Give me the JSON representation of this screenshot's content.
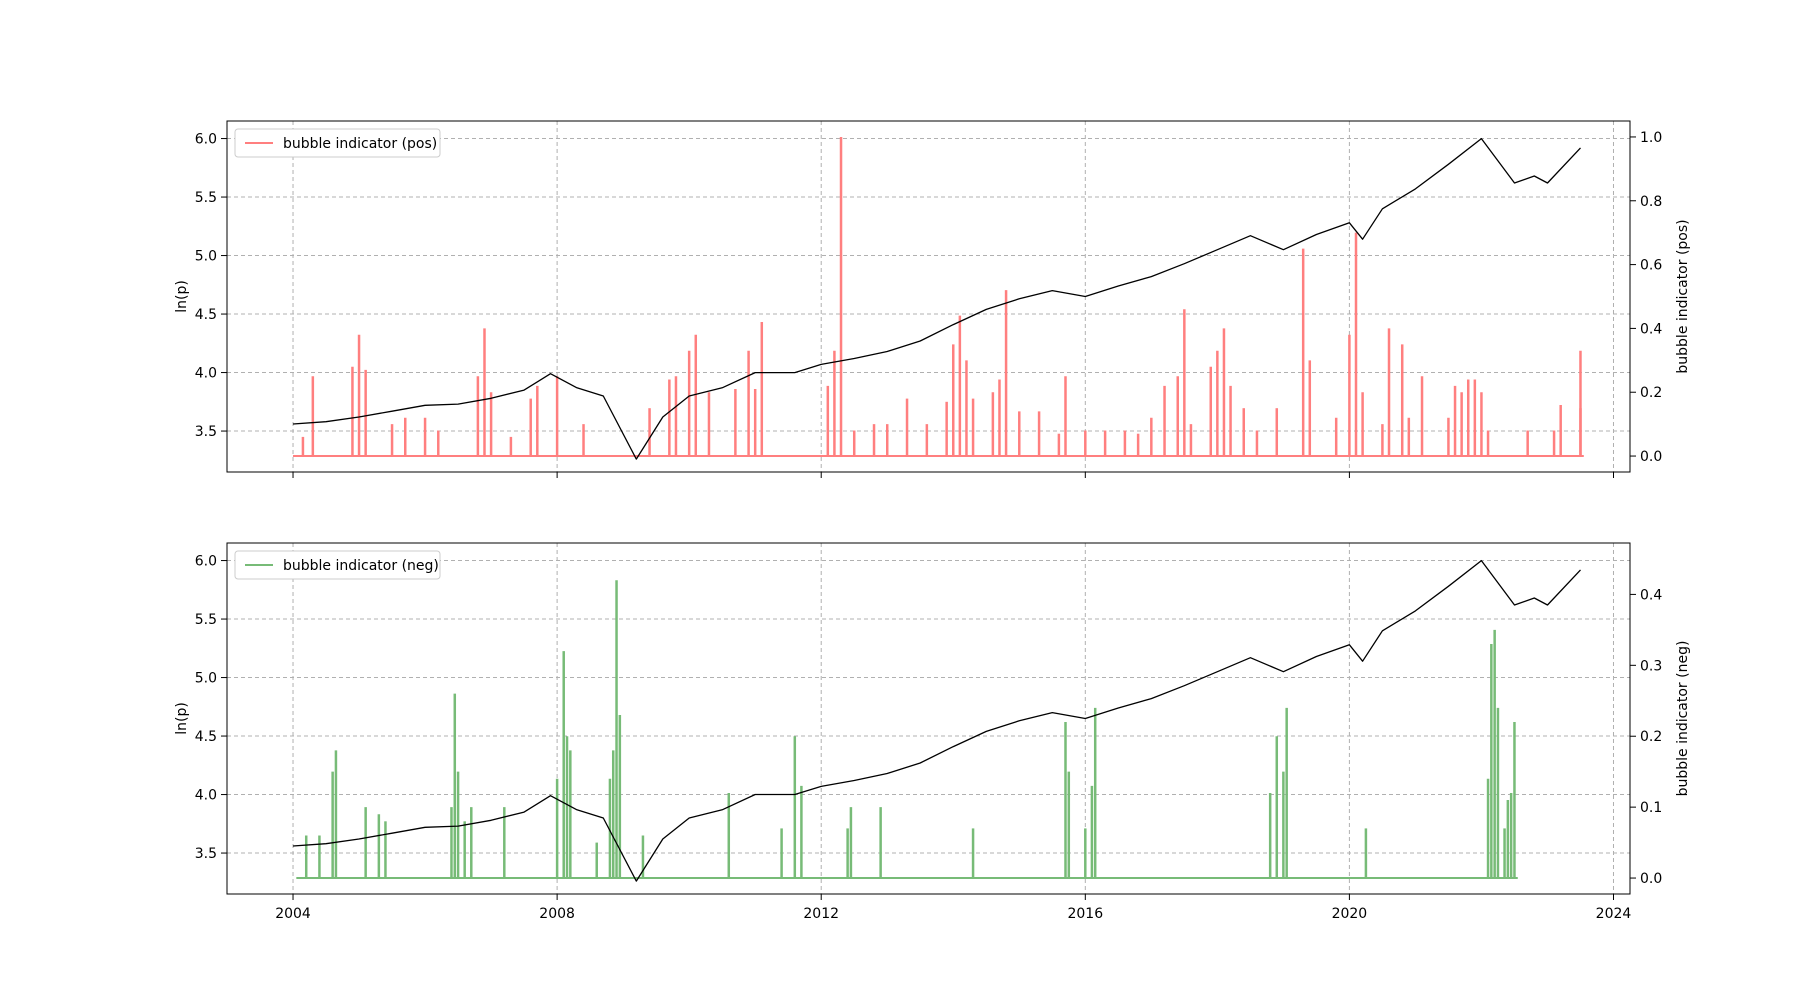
{
  "chart_data": [
    {
      "type": "line",
      "title": "",
      "xlabel": "",
      "ylabel": "ln(p)",
      "ylabel_right": "bubble indicator (pos)",
      "xlim": [
        2003,
        2024.25
      ],
      "ylim": [
        3.15,
        6.15
      ],
      "ylim_right": [
        -0.05,
        1.05
      ],
      "grid": true,
      "legend": {
        "placement": "upper-left",
        "entries": [
          "bubble indicator (pos)"
        ]
      },
      "x_ticks": [
        "2004",
        "2008",
        "2012",
        "2016",
        "2020",
        "2024"
      ],
      "y_ticks": [
        "3.5",
        "4.0",
        "4.5",
        "5.0",
        "5.5",
        "6.0"
      ],
      "y_ticks_right": [
        "0.0",
        "0.2",
        "0.4",
        "0.6",
        "0.8",
        "1.0"
      ],
      "price_series": {
        "axis": "left",
        "color": "#000000",
        "x": [
          2004.0,
          2004.5,
          2005.0,
          2005.5,
          2006.0,
          2006.5,
          2007.0,
          2007.5,
          2007.9,
          2008.3,
          2008.7,
          2009.2,
          2009.6,
          2010.0,
          2010.5,
          2011.0,
          2011.6,
          2012.0,
          2012.5,
          2013.0,
          2013.5,
          2014.0,
          2014.5,
          2015.0,
          2015.5,
          2016.0,
          2016.5,
          2017.0,
          2017.5,
          2018.0,
          2018.5,
          2019.0,
          2019.5,
          2020.0,
          2020.2,
          2020.5,
          2021.0,
          2021.5,
          2022.0,
          2022.5,
          2022.8,
          2023.0,
          2023.5
        ],
        "y": [
          3.56,
          3.58,
          3.62,
          3.67,
          3.72,
          3.73,
          3.78,
          3.85,
          3.99,
          3.87,
          3.8,
          3.26,
          3.62,
          3.8,
          3.87,
          4.0,
          4.0,
          4.07,
          4.12,
          4.18,
          4.27,
          4.41,
          4.54,
          4.63,
          4.7,
          4.65,
          4.74,
          4.82,
          4.93,
          5.05,
          5.17,
          5.05,
          5.18,
          5.28,
          5.14,
          5.4,
          5.57,
          5.78,
          6.0,
          5.62,
          5.68,
          5.62,
          5.92
        ]
      },
      "indicator_series": {
        "name": "bubble indicator (pos)",
        "axis": "right",
        "color": "#ff7f7f",
        "spikes": [
          [
            2004.15,
            0.06
          ],
          [
            2004.3,
            0.25
          ],
          [
            2004.9,
            0.28
          ],
          [
            2005.0,
            0.38
          ],
          [
            2005.1,
            0.27
          ],
          [
            2005.5,
            0.1
          ],
          [
            2005.7,
            0.12
          ],
          [
            2006.0,
            0.12
          ],
          [
            2006.2,
            0.08
          ],
          [
            2006.8,
            0.25
          ],
          [
            2006.9,
            0.4
          ],
          [
            2007.0,
            0.2
          ],
          [
            2007.3,
            0.06
          ],
          [
            2007.6,
            0.18
          ],
          [
            2007.7,
            0.22
          ],
          [
            2008.0,
            0.25
          ],
          [
            2008.4,
            0.1
          ],
          [
            2009.4,
            0.15
          ],
          [
            2009.7,
            0.24
          ],
          [
            2009.8,
            0.25
          ],
          [
            2010.0,
            0.33
          ],
          [
            2010.1,
            0.38
          ],
          [
            2010.3,
            0.2
          ],
          [
            2010.7,
            0.21
          ],
          [
            2010.9,
            0.33
          ],
          [
            2011.0,
            0.21
          ],
          [
            2011.1,
            0.42
          ],
          [
            2012.1,
            0.22
          ],
          [
            2012.2,
            0.33
          ],
          [
            2012.3,
            1.0
          ],
          [
            2012.5,
            0.08
          ],
          [
            2012.8,
            0.1
          ],
          [
            2013.0,
            0.1
          ],
          [
            2013.3,
            0.18
          ],
          [
            2013.6,
            0.1
          ],
          [
            2013.9,
            0.17
          ],
          [
            2014.0,
            0.35
          ],
          [
            2014.1,
            0.44
          ],
          [
            2014.2,
            0.3
          ],
          [
            2014.3,
            0.18
          ],
          [
            2014.6,
            0.2
          ],
          [
            2014.7,
            0.24
          ],
          [
            2014.8,
            0.52
          ],
          [
            2015.0,
            0.14
          ],
          [
            2015.3,
            0.14
          ],
          [
            2015.6,
            0.07
          ],
          [
            2015.7,
            0.25
          ],
          [
            2016.0,
            0.08
          ],
          [
            2016.3,
            0.08
          ],
          [
            2016.6,
            0.08
          ],
          [
            2016.8,
            0.07
          ],
          [
            2017.0,
            0.12
          ],
          [
            2017.2,
            0.22
          ],
          [
            2017.4,
            0.25
          ],
          [
            2017.5,
            0.46
          ],
          [
            2017.6,
            0.1
          ],
          [
            2017.9,
            0.28
          ],
          [
            2018.0,
            0.33
          ],
          [
            2018.1,
            0.4
          ],
          [
            2018.2,
            0.22
          ],
          [
            2018.4,
            0.15
          ],
          [
            2018.6,
            0.08
          ],
          [
            2018.9,
            0.15
          ],
          [
            2019.3,
            0.65
          ],
          [
            2019.4,
            0.3
          ],
          [
            2019.8,
            0.12
          ],
          [
            2020.0,
            0.38
          ],
          [
            2020.1,
            0.7
          ],
          [
            2020.2,
            0.2
          ],
          [
            2020.5,
            0.1
          ],
          [
            2020.6,
            0.4
          ],
          [
            2020.8,
            0.35
          ],
          [
            2020.9,
            0.12
          ],
          [
            2021.1,
            0.25
          ],
          [
            2021.5,
            0.12
          ],
          [
            2021.6,
            0.22
          ],
          [
            2021.7,
            0.2
          ],
          [
            2021.8,
            0.24
          ],
          [
            2021.9,
            0.24
          ],
          [
            2022.0,
            0.2
          ],
          [
            2022.1,
            0.08
          ],
          [
            2022.7,
            0.08
          ],
          [
            2023.1,
            0.08
          ],
          [
            2023.2,
            0.16
          ],
          [
            2023.5,
            0.15
          ],
          [
            2023.5,
            0.33
          ]
        ]
      }
    },
    {
      "type": "line",
      "title": "",
      "xlabel": "",
      "ylabel": "ln(p)",
      "ylabel_right": "bubble indicator (neg)",
      "xlim": [
        2003,
        2024.25
      ],
      "ylim": [
        3.15,
        6.15
      ],
      "ylim_right": [
        -0.0225,
        0.4725
      ],
      "grid": true,
      "legend": {
        "placement": "upper-left",
        "entries": [
          "bubble indicator (neg)"
        ]
      },
      "x_ticks": [
        "2004",
        "2008",
        "2012",
        "2016",
        "2020",
        "2024"
      ],
      "y_ticks": [
        "3.5",
        "4.0",
        "4.5",
        "5.0",
        "5.5",
        "6.0"
      ],
      "y_ticks_right": [
        "0.0",
        "0.1",
        "0.2",
        "0.3",
        "0.4"
      ],
      "price_series": {
        "axis": "left",
        "color": "#000000",
        "x": [
          2004.0,
          2004.5,
          2005.0,
          2005.5,
          2006.0,
          2006.5,
          2007.0,
          2007.5,
          2007.9,
          2008.3,
          2008.7,
          2009.2,
          2009.6,
          2010.0,
          2010.5,
          2011.0,
          2011.6,
          2012.0,
          2012.5,
          2013.0,
          2013.5,
          2014.0,
          2014.5,
          2015.0,
          2015.5,
          2016.0,
          2016.5,
          2017.0,
          2017.5,
          2018.0,
          2018.5,
          2019.0,
          2019.5,
          2020.0,
          2020.2,
          2020.5,
          2021.0,
          2021.5,
          2022.0,
          2022.5,
          2022.8,
          2023.0,
          2023.5
        ],
        "y": [
          3.56,
          3.58,
          3.62,
          3.67,
          3.72,
          3.73,
          3.78,
          3.85,
          3.99,
          3.87,
          3.8,
          3.26,
          3.62,
          3.8,
          3.87,
          4.0,
          4.0,
          4.07,
          4.12,
          4.18,
          4.27,
          4.41,
          4.54,
          4.63,
          4.7,
          4.65,
          4.74,
          4.82,
          4.93,
          5.05,
          5.17,
          5.05,
          5.18,
          5.28,
          5.14,
          5.4,
          5.57,
          5.78,
          6.0,
          5.62,
          5.68,
          5.62,
          5.92
        ]
      },
      "indicator_series": {
        "name": "bubble indicator (neg)",
        "axis": "right",
        "color": "#77bb77",
        "spikes": [
          [
            2004.2,
            0.06
          ],
          [
            2004.4,
            0.06
          ],
          [
            2004.6,
            0.15
          ],
          [
            2004.65,
            0.18
          ],
          [
            2005.1,
            0.1
          ],
          [
            2005.3,
            0.09
          ],
          [
            2005.4,
            0.08
          ],
          [
            2006.4,
            0.1
          ],
          [
            2006.45,
            0.26
          ],
          [
            2006.5,
            0.15
          ],
          [
            2006.6,
            0.08
          ],
          [
            2006.7,
            0.1
          ],
          [
            2007.2,
            0.1
          ],
          [
            2008.0,
            0.14
          ],
          [
            2008.1,
            0.32
          ],
          [
            2008.15,
            0.2
          ],
          [
            2008.2,
            0.18
          ],
          [
            2008.6,
            0.05
          ],
          [
            2008.8,
            0.14
          ],
          [
            2008.85,
            0.18
          ],
          [
            2008.9,
            0.42
          ],
          [
            2008.95,
            0.23
          ],
          [
            2009.3,
            0.06
          ],
          [
            2010.6,
            0.12
          ],
          [
            2011.4,
            0.07
          ],
          [
            2011.6,
            0.2
          ],
          [
            2011.7,
            0.13
          ],
          [
            2012.4,
            0.07
          ],
          [
            2012.45,
            0.1
          ],
          [
            2012.9,
            0.1
          ],
          [
            2014.3,
            0.07
          ],
          [
            2015.7,
            0.22
          ],
          [
            2015.75,
            0.15
          ],
          [
            2016.0,
            0.07
          ],
          [
            2016.1,
            0.13
          ],
          [
            2016.15,
            0.24
          ],
          [
            2018.8,
            0.12
          ],
          [
            2018.9,
            0.2
          ],
          [
            2019.0,
            0.15
          ],
          [
            2019.05,
            0.24
          ],
          [
            2020.25,
            0.07
          ],
          [
            2022.1,
            0.14
          ],
          [
            2022.15,
            0.33
          ],
          [
            2022.2,
            0.35
          ],
          [
            2022.25,
            0.24
          ],
          [
            2022.35,
            0.07
          ],
          [
            2022.4,
            0.11
          ],
          [
            2022.45,
            0.12
          ],
          [
            2022.5,
            0.22
          ]
        ]
      }
    }
  ]
}
